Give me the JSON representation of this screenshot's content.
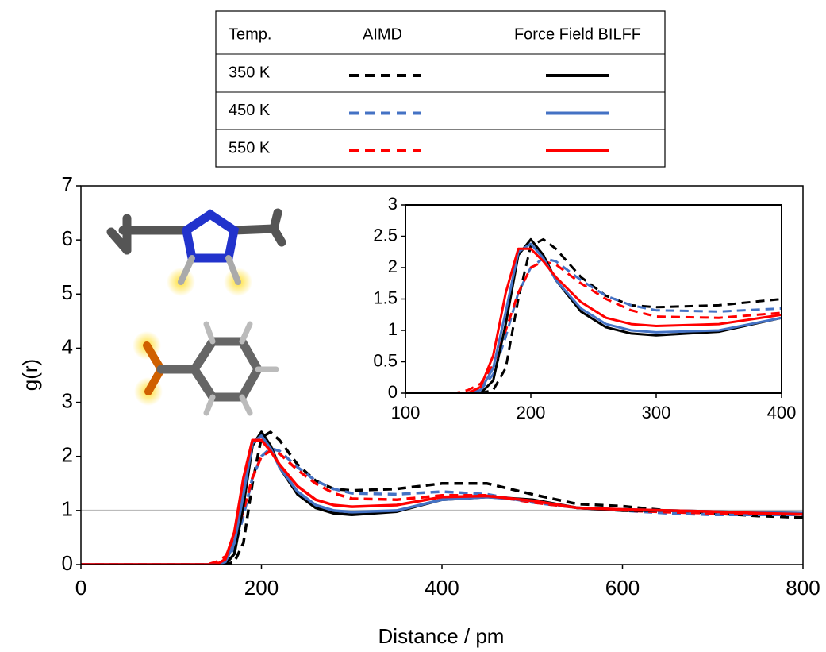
{
  "chart_data": {
    "type": "line",
    "xlabel": "Distance / pm",
    "ylabel": "g(r)",
    "legend_headers": [
      "Temp.",
      "AIMD",
      "Force Field BILFF"
    ],
    "x": [
      0,
      140,
      150,
      160,
      170,
      180,
      190,
      200,
      210,
      220,
      240,
      260,
      280,
      300,
      350,
      400,
      450,
      500,
      550,
      600,
      650,
      700,
      750,
      800
    ],
    "series": [
      {
        "name": "350 K",
        "color": "#000000",
        "aimd": [
          0,
          0,
          0,
          0,
          0.05,
          0.4,
          1.5,
          2.35,
          2.45,
          2.3,
          1.85,
          1.55,
          1.4,
          1.37,
          1.4,
          1.5,
          1.5,
          1.3,
          1.12,
          1.08,
          1.0,
          0.95,
          0.9,
          0.87
        ],
        "force_field": [
          0,
          0,
          0,
          0,
          0.2,
          1.1,
          2.2,
          2.45,
          2.2,
          1.8,
          1.3,
          1.05,
          0.95,
          0.92,
          0.98,
          1.2,
          1.25,
          1.2,
          1.05,
          1.0,
          1.0,
          0.98,
          0.96,
          0.95
        ]
      },
      {
        "name": "450 K",
        "color": "#4472c4",
        "aimd": [
          0,
          0,
          0,
          0.05,
          0.3,
          0.9,
          1.6,
          2.0,
          2.15,
          2.1,
          1.8,
          1.55,
          1.4,
          1.32,
          1.3,
          1.35,
          1.3,
          1.15,
          1.05,
          1.0,
          0.95,
          0.92,
          0.92,
          0.92
        ],
        "force_field": [
          0,
          0,
          0,
          0.05,
          0.4,
          1.3,
          2.25,
          2.38,
          2.15,
          1.8,
          1.35,
          1.1,
          1.0,
          0.97,
          1.0,
          1.2,
          1.25,
          1.18,
          1.05,
          1.02,
          1.0,
          0.98,
          0.96,
          0.95
        ]
      },
      {
        "name": "550 K",
        "color": "#ff0000",
        "aimd": [
          0,
          0,
          0.05,
          0.15,
          0.45,
          1.0,
          1.6,
          2.0,
          2.1,
          2.05,
          1.75,
          1.5,
          1.32,
          1.22,
          1.2,
          1.28,
          1.28,
          1.15,
          1.05,
          1.0,
          0.97,
          0.95,
          0.94,
          0.93
        ],
        "force_field": [
          0,
          0,
          0,
          0.1,
          0.6,
          1.6,
          2.3,
          2.3,
          2.1,
          1.85,
          1.45,
          1.2,
          1.1,
          1.07,
          1.1,
          1.25,
          1.27,
          1.18,
          1.05,
          1.02,
          1.0,
          0.98,
          0.95,
          0.93
        ]
      }
    ],
    "xlim": [
      0,
      800
    ],
    "ylim": [
      0,
      7
    ],
    "xticks": [
      0,
      200,
      400,
      600,
      800
    ],
    "yticks": [
      0,
      1,
      2,
      3,
      4,
      5,
      6,
      7
    ],
    "hline": 1,
    "inset": {
      "xlim": [
        100,
        400
      ],
      "ylim": [
        0,
        3
      ],
      "xticks": [
        100,
        200,
        300,
        400
      ],
      "yticks": [
        0,
        0.5,
        1,
        1.5,
        2,
        2.5,
        3
      ]
    }
  }
}
